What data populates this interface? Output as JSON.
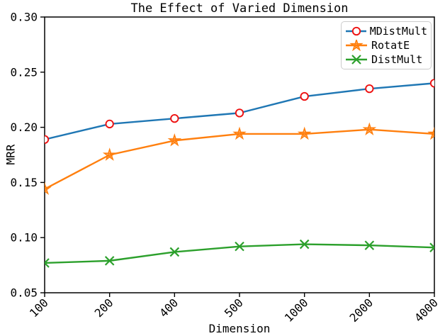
{
  "chart_data": {
    "type": "line",
    "title": "The Effect of Varied Dimension",
    "xlabel": "Dimension",
    "ylabel": "MRR",
    "categories": [
      "100",
      "200",
      "400",
      "500",
      "1000",
      "2000",
      "4000"
    ],
    "ylim": [
      0.05,
      0.3
    ],
    "yticks": [
      0.05,
      0.1,
      0.15,
      0.2,
      0.25,
      0.3
    ],
    "grid": false,
    "legend_position": "upper right",
    "series": [
      {
        "name": "MDistMult",
        "color": "#1f77b4",
        "marker": "circle",
        "marker_color": "#ee1111",
        "values": [
          0.189,
          0.203,
          0.208,
          0.213,
          0.228,
          0.235,
          0.24
        ]
      },
      {
        "name": "RotatE",
        "color": "#ff7f0e",
        "marker": "star",
        "marker_color": "#ff7f0e",
        "values": [
          0.144,
          0.175,
          0.188,
          0.194,
          0.194,
          0.198,
          0.194
        ]
      },
      {
        "name": "DistMult",
        "color": "#2ca02c",
        "marker": "x",
        "marker_color": "#2ca02c",
        "values": [
          0.077,
          0.079,
          0.087,
          0.092,
          0.094,
          0.093,
          0.091
        ]
      }
    ]
  }
}
